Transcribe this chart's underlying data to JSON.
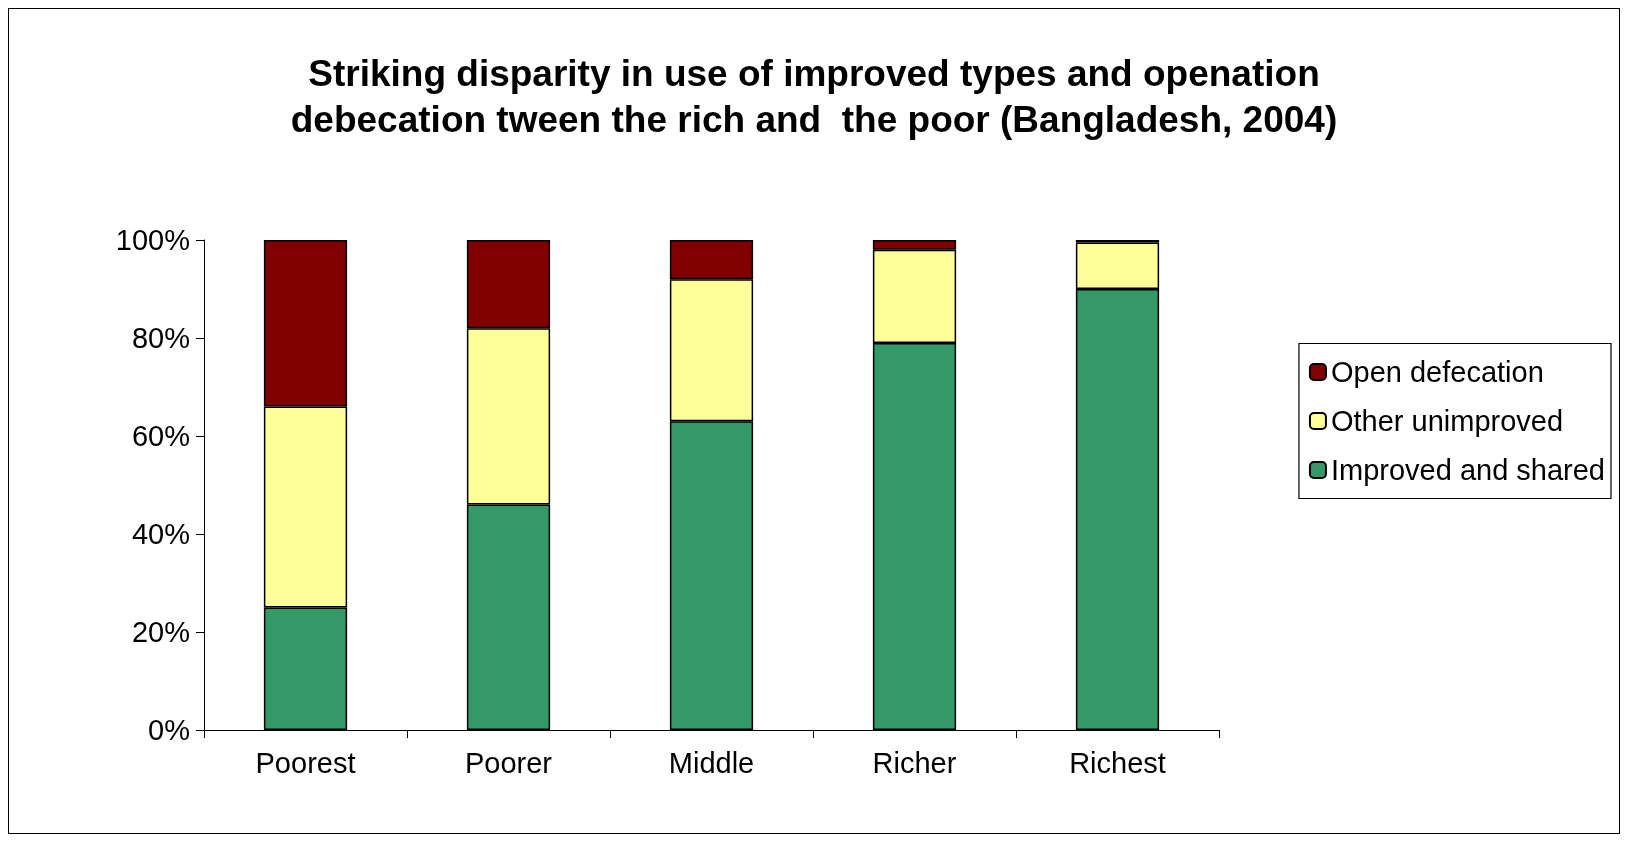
{
  "chart_data": {
    "type": "bar",
    "title": "Striking disparity in use of improved types and openation\ndebecation tween the rich and  the poor (Bangladesh, 2004)",
    "categories": [
      "Poorest",
      "Poorer",
      "Middle",
      "Richer",
      "Richest"
    ],
    "stacked": true,
    "series": [
      {
        "name": "Improved and shared",
        "color": "#339966",
        "values": [
          25,
          46,
          63,
          79,
          90
        ]
      },
      {
        "name": "Other unimproved",
        "color": "#ffff99",
        "values": [
          41,
          36,
          29,
          19,
          9.5
        ]
      },
      {
        "name": "Open defecation",
        "color": "#800000",
        "values": [
          34,
          18,
          8,
          2,
          0.5
        ]
      }
    ],
    "ylim": [
      0,
      100
    ],
    "yticks": [
      {
        "value": 0,
        "label": "0%"
      },
      {
        "value": 20,
        "label": "20%"
      },
      {
        "value": 40,
        "label": "40%"
      },
      {
        "value": 60,
        "label": "60%"
      },
      {
        "value": 80,
        "label": "80%"
      },
      {
        "value": 100,
        "label": "100%"
      }
    ],
    "grid": false,
    "legend": "right"
  }
}
